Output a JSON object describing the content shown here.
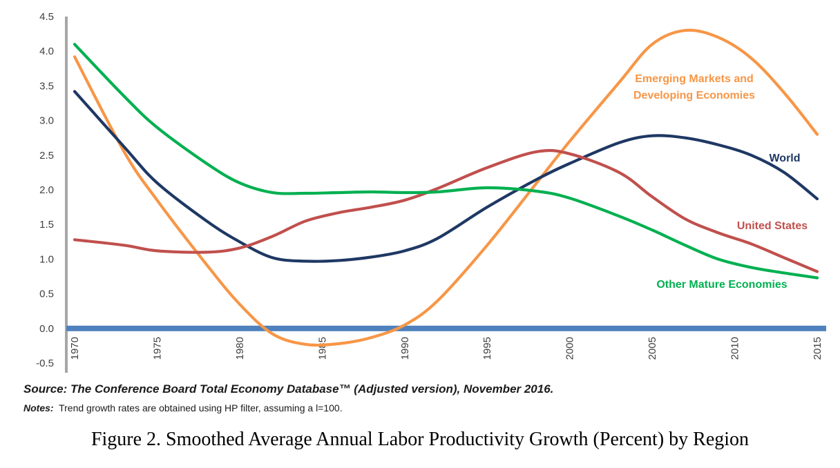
{
  "chart_data": {
    "type": "line",
    "x": [
      1970,
      1973,
      1975,
      1978,
      1980,
      1982,
      1984,
      1986,
      1988,
      1990,
      1992,
      1995,
      1998,
      2000,
      2003,
      2005,
      2007,
      2009,
      2011,
      2013,
      2015
    ],
    "x_ticks": [
      "1970",
      "1975",
      "1980",
      "1985",
      "1990",
      "1995",
      "2000",
      "2005",
      "2010",
      "2015"
    ],
    "y_ticks": [
      "-0.5",
      "0.0",
      "0.5",
      "1.0",
      "1.5",
      "2.0",
      "2.5",
      "3.0",
      "3.5",
      "4.0",
      "4.5"
    ],
    "xlim": [
      1970,
      2015
    ],
    "ylim": [
      -0.5,
      4.5
    ],
    "zero_line": true,
    "grid": false,
    "series": [
      {
        "name": "Emerging Markets and Developing Economies",
        "label_lines": [
          "Emerging Markets and",
          "Developing Economies"
        ],
        "color": "#F79646",
        "values": [
          3.92,
          2.55,
          1.85,
          0.92,
          0.35,
          -0.08,
          -0.23,
          -0.22,
          -0.13,
          0.05,
          0.4,
          1.2,
          2.1,
          2.7,
          3.55,
          4.1,
          4.3,
          4.2,
          3.9,
          3.4,
          2.8
        ]
      },
      {
        "name": "World",
        "label_lines": [
          "World"
        ],
        "color": "#1F3864",
        "values": [
          3.42,
          2.62,
          2.1,
          1.55,
          1.25,
          1.02,
          0.97,
          0.98,
          1.03,
          1.12,
          1.3,
          1.75,
          2.15,
          2.38,
          2.68,
          2.78,
          2.75,
          2.65,
          2.5,
          2.25,
          1.87
        ]
      },
      {
        "name": "United States",
        "label_lines": [
          "United States"
        ],
        "color": "#C0504D",
        "values": [
          1.28,
          1.2,
          1.12,
          1.1,
          1.16,
          1.33,
          1.55,
          1.67,
          1.75,
          1.85,
          2.02,
          2.32,
          2.55,
          2.52,
          2.25,
          1.9,
          1.58,
          1.38,
          1.22,
          1.02,
          0.82
        ]
      },
      {
        "name": "Other Mature Economies",
        "label_lines": [
          "Other Mature Economies"
        ],
        "color": "#00B050",
        "values": [
          4.1,
          3.35,
          2.9,
          2.38,
          2.1,
          1.96,
          1.95,
          1.96,
          1.97,
          1.96,
          1.97,
          2.03,
          1.98,
          1.88,
          1.62,
          1.42,
          1.2,
          1.0,
          0.88,
          0.8,
          0.73
        ]
      }
    ]
  },
  "source_text": "Source: The Conference Board Total Economy Database™ (Adjusted version), November 2016.",
  "notes_label": "Notes:",
  "notes_text": "Trend growth rates are obtained using HP filter, assuming a l=100.",
  "caption": "Figure 2. Smoothed Average Annual Labor Productivity Growth (Percent) by Region",
  "colors": {
    "axis": "#A6A6A6",
    "zero_line": "#4F81BD"
  }
}
